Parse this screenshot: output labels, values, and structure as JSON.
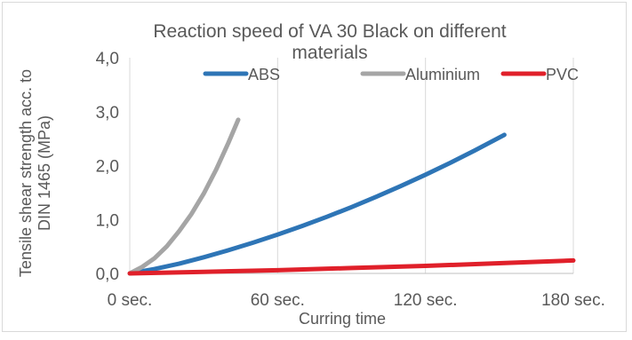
{
  "chart_data": {
    "type": "line",
    "title_line1": "Reaction speed of VA 30 Black on different",
    "title_line2": "materials",
    "xlabel": "Curring time",
    "ylabel_line1": "Tensile shear strength acc. to",
    "ylabel_line2": "DIN 1465 (MPa)",
    "xlim": [
      0,
      180
    ],
    "ylim": [
      0,
      4
    ],
    "x_ticks": [
      0,
      60,
      120,
      180
    ],
    "x_tick_labels": [
      "0 sec.",
      "60 sec.",
      "120 sec.",
      "180 sec."
    ],
    "y_ticks": [
      0,
      1,
      2,
      3,
      4
    ],
    "y_tick_labels": [
      "0,0",
      "1,0",
      "2,0",
      "3,0",
      "4,0"
    ],
    "grid": "vertical",
    "legend_position": "top",
    "series": [
      {
        "name": "ABS",
        "color": "#2e75b6",
        "x": [
          0,
          10,
          20,
          30,
          40,
          50,
          60,
          70,
          80,
          90,
          100,
          110,
          120,
          130,
          140,
          152
        ],
        "y": [
          0,
          0.08,
          0.18,
          0.3,
          0.43,
          0.57,
          0.72,
          0.88,
          1.05,
          1.23,
          1.42,
          1.62,
          1.83,
          2.05,
          2.28,
          2.57
        ]
      },
      {
        "name": "Aluminium",
        "color": "#a5a5a5",
        "x": [
          0,
          5,
          10,
          15,
          20,
          25,
          30,
          35,
          40,
          44
        ],
        "y": [
          0,
          0.12,
          0.28,
          0.5,
          0.78,
          1.1,
          1.48,
          1.92,
          2.42,
          2.85
        ]
      },
      {
        "name": "PVC",
        "color": "#e0202a",
        "x": [
          0,
          30,
          60,
          90,
          120,
          150,
          180
        ],
        "y": [
          0,
          0.03,
          0.06,
          0.1,
          0.14,
          0.19,
          0.24
        ]
      }
    ]
  }
}
